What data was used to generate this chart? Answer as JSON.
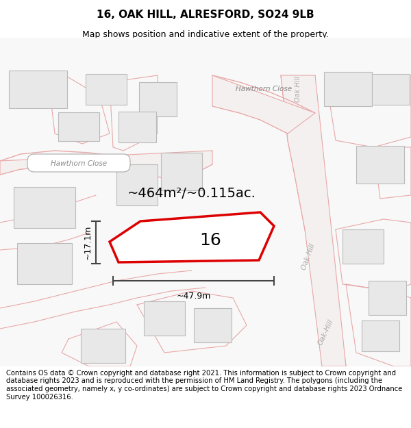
{
  "title_line1": "16, OAK HILL, ALRESFORD, SO24 9LB",
  "title_line2": "Map shows position and indicative extent of the property.",
  "footer_text": "Contains OS data © Crown copyright and database right 2021. This information is subject to Crown copyright and database rights 2023 and is reproduced with the permission of HM Land Registry. The polygons (including the associated geometry, namely x, y co-ordinates) are subject to Crown copyright and database rights 2023 Ordnance Survey 100026316.",
  "area_label": "~464m²/~0.115ac.",
  "width_label": "~47.9m",
  "height_label": "~17.1m",
  "plot_number": "16",
  "map_bg": "#f8f8f8",
  "plot_color": "#dd0000",
  "building_fill": "#e8e8e8",
  "building_edge": "#bbbbbb",
  "road_line_color": "#f0a0a0",
  "road_fill_color": "#f5e8e8",
  "title_fontsize": 11,
  "subtitle_fontsize": 9,
  "footer_fontsize": 7.2,
  "area_fontsize": 14,
  "dim_fontsize": 9,
  "plot_num_fontsize": 18,
  "street_label_fontsize": 7.5
}
